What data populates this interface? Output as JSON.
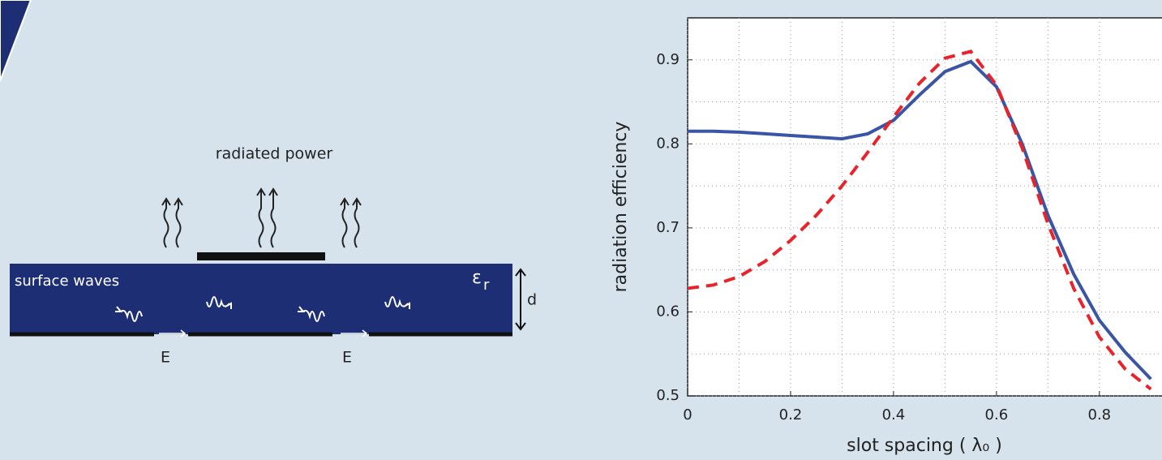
{
  "chart_data": {
    "type": "line",
    "x_label": "slot spacing ( λ₀ )",
    "y_label": "radiation efficiency",
    "x": [
      0,
      0.05,
      0.1,
      0.15,
      0.2,
      0.25,
      0.3,
      0.35,
      0.4,
      0.45,
      0.5,
      0.55,
      0.6,
      0.65,
      0.7,
      0.75,
      0.8,
      0.85,
      0.9
    ],
    "series": [
      {
        "color": "#3a55a4",
        "dash": false,
        "values": [
          0.815,
          0.815,
          0.814,
          0.812,
          0.81,
          0.808,
          0.806,
          0.812,
          0.828,
          0.858,
          0.886,
          0.898,
          0.868,
          0.8,
          0.715,
          0.645,
          0.59,
          0.552,
          0.52
        ]
      },
      {
        "color": "#e8232a",
        "dash": true,
        "values": [
          0.628,
          0.632,
          0.642,
          0.66,
          0.685,
          0.715,
          0.75,
          0.79,
          0.832,
          0.872,
          0.902,
          0.91,
          0.87,
          0.795,
          0.705,
          0.628,
          0.57,
          0.532,
          0.508
        ]
      }
    ],
    "xlim": [
      0,
      0.92
    ],
    "ylim": [
      0.5,
      0.95
    ],
    "xticks": [
      0,
      0.2,
      0.4,
      0.6,
      0.8
    ],
    "yticks": [
      0.5,
      0.6,
      0.7,
      0.8,
      0.9
    ],
    "grid": true,
    "minor_grid": true
  },
  "diagram": {
    "title": "radiated power",
    "substrate_label": "surface waves",
    "permittivity_symbol": "ε",
    "permittivity_subscript": "r",
    "thickness": "d",
    "field_labels": [
      "E",
      "E"
    ]
  }
}
